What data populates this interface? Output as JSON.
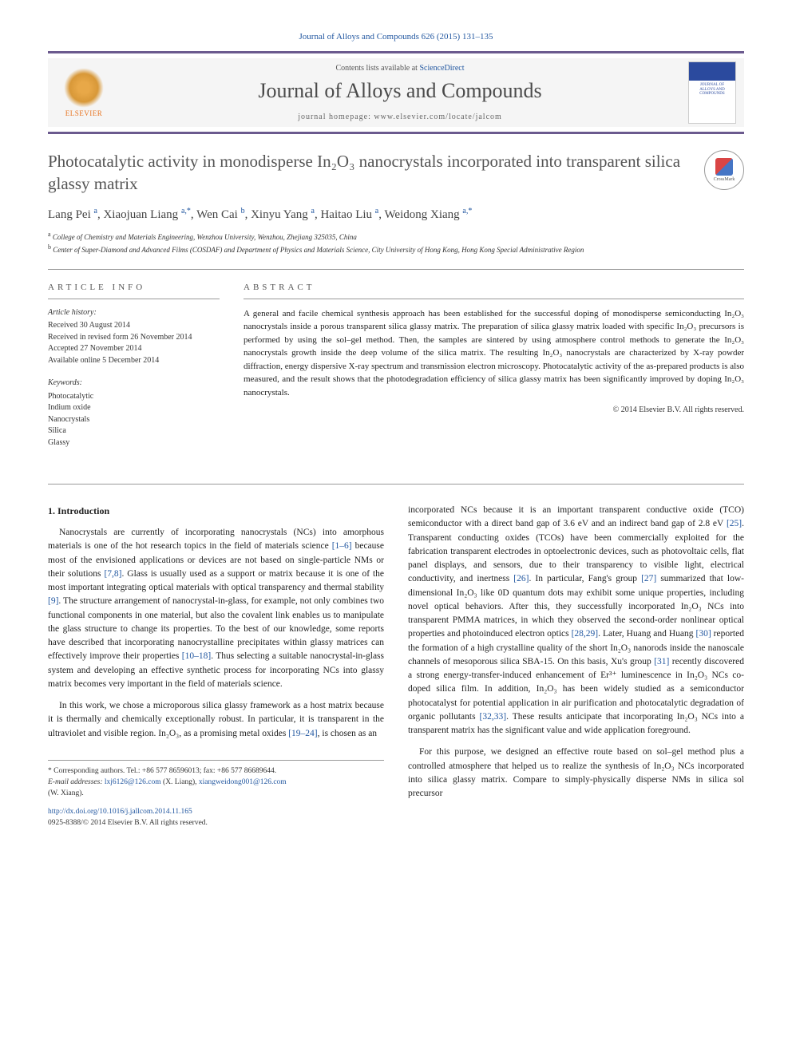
{
  "journal_ref": "Journal of Alloys and Compounds 626 (2015) 131–135",
  "header": {
    "contents_prefix": "Contents lists available at ",
    "contents_link": "ScienceDirect",
    "journal_name": "Journal of Alloys and Compounds",
    "homepage_prefix": "journal homepage: ",
    "homepage_url": "www.elsevier.com/locate/jalcom",
    "publisher": "ELSEVIER",
    "cover_text": "JOURNAL OF ALLOYS AND COMPOUNDS"
  },
  "title": "Photocatalytic activity in monodisperse In₂O₃ nanocrystals incorporated into transparent silica glassy matrix",
  "crossmark_label": "CrossMark",
  "authors_html": "Lang Pei <sup>a</sup>, Xiaojuan Liang <sup>a,*</sup>, Wen Cai <sup>b</sup>, Xinyu Yang <sup>a</sup>, Haitao Liu <sup>a</sup>, Weidong Xiang <sup>a,*</sup>",
  "affiliations": [
    {
      "sup": "a",
      "text": "College of Chemistry and Materials Engineering, Wenzhou University, Wenzhou, Zhejiang 325035, China"
    },
    {
      "sup": "b",
      "text": "Center of Super-Diamond and Advanced Films (COSDAF) and Department of Physics and Materials Science, City University of Hong Kong, Hong Kong Special Administrative Region"
    }
  ],
  "article_info": {
    "heading": "article info",
    "history_label": "Article history:",
    "received": "Received 30 August 2014",
    "revised": "Received in revised form 26 November 2014",
    "accepted": "Accepted 27 November 2014",
    "online": "Available online 5 December 2014",
    "keywords_label": "Keywords:",
    "keywords": [
      "Photocatalytic",
      "Indium oxide",
      "Nanocrystals",
      "Silica",
      "Glassy"
    ]
  },
  "abstract": {
    "heading": "abstract",
    "text": "A general and facile chemical synthesis approach has been established for the successful doping of monodisperse semiconducting In₂O₃ nanocrystals inside a porous transparent silica glassy matrix. The preparation of silica glassy matrix loaded with specific In₂O₃ precursors is performed by using the sol–gel method. Then, the samples are sintered by using atmosphere control methods to generate the In₂O₃ nanocrystals growth inside the deep volume of the silica matrix. The resulting In₂O₃ nanocrystals are characterized by X-ray powder diffraction, energy dispersive X-ray spectrum and transmission electron microscopy. Photocatalytic activity of the as-prepared products is also measured, and the result shows that the photodegradation efficiency of silica glassy matrix has been significantly improved by doping In₂O₃ nanocrystals.",
    "copyright": "© 2014 Elsevier B.V. All rights reserved."
  },
  "body": {
    "section_1_head": "1. Introduction",
    "col1_p1_pre": "Nanocrystals are currently of incorporating nanocrystals (NCs) into amorphous materials is one of the hot research topics in the field of materials science ",
    "col1_p1_ref1": "[1–6]",
    "col1_p1_mid1": " because most of the envisioned applications or devices are not based on single-particle NMs or their solutions ",
    "col1_p1_ref2": "[7,8]",
    "col1_p1_mid2": ". Glass is usually used as a support or matrix because it is one of the most important integrating optical materials with optical transparency and thermal stability ",
    "col1_p1_ref3": "[9]",
    "col1_p1_mid3": ". The structure arrangement of nanocrystal-in-glass, for example, not only combines two functional components in one material, but also the covalent link enables us to manipulate the glass structure to change its properties. To the best of our knowledge, some reports have described that incorporating nanocrystalline precipitates within glassy matrices can effectively improve their properties ",
    "col1_p1_ref4": "[10–18]",
    "col1_p1_post": ". Thus selecting a suitable nanocrystal-in-glass system and developing an effective synthetic process for incorporating NCs into glassy matrix becomes very important in the field of materials science.",
    "col1_p2_pre": "In this work, we chose a microporous silica glassy framework as a host matrix because it is thermally and chemically exceptionally robust. In particular, it is transparent in the ultraviolet and visible region. In₂O₃, as a promising metal oxides ",
    "col1_p2_ref1": "[19–24]",
    "col1_p2_post": ", is chosen as an",
    "col2_p1_pre": "incorporated NCs because it is an important transparent conductive oxide (TCO) semiconductor with a direct band gap of 3.6 eV and an indirect band gap of 2.8 eV ",
    "col2_p1_ref1": "[25]",
    "col2_p1_mid1": ". Transparent conducting oxides (TCOs) have been commercially exploited for the fabrication transparent electrodes in optoelectronic devices, such as photovoltaic cells, flat panel displays, and sensors, due to their transparency to visible light, electrical conductivity, and inertness ",
    "col2_p1_ref2": "[26]",
    "col2_p1_mid2": ". In particular, Fang's group ",
    "col2_p1_ref3": "[27]",
    "col2_p1_mid3": " summarized that low-dimensional In₂O₃ like 0D quantum dots may exhibit some unique properties, including novel optical behaviors. After this, they successfully incorporated In₂O₃ NCs into transparent PMMA matrices, in which they observed the second-order nonlinear optical properties and photoinduced electron optics ",
    "col2_p1_ref4": "[28,29]",
    "col2_p1_mid4": ". Later, Huang and Huang ",
    "col2_p1_ref5": "[30]",
    "col2_p1_mid5": " reported the formation of a high crystalline quality of the short In₂O₃ nanorods inside the nanoscale channels of mesoporous silica SBA-15. On this basis, Xu's group ",
    "col2_p1_ref6": "[31]",
    "col2_p1_mid6": " recently discovered a strong energy-transfer-induced enhancement of Er³⁺ luminescence in In₂O₃ NCs co-doped silica film. In addition, In₂O₃ has been widely studied as a semiconductor photocatalyst for potential application in air purification and photocatalytic degradation of organic pollutants ",
    "col2_p1_ref7": "[32,33]",
    "col2_p1_post": ". These results anticipate that incorporating In₂O₃ NCs into a transparent matrix has the significant value and wide application foreground.",
    "col2_p2": "For this purpose, we designed an effective route based on sol–gel method plus a controlled atmosphere that helped us to realize the synthesis of In₂O₃ NCs incorporated into silica glassy matrix. Compare to simply-physically disperse NMs in silica sol precursor"
  },
  "footer": {
    "corr_label": "* Corresponding authors. Tel.: +86 577 86596013; fax: +86 577 86689644.",
    "email_label": "E-mail addresses: ",
    "email1": "lxj6126@126.com",
    "email1_who": " (X. Liang), ",
    "email2": "xiangweidong001@126.com",
    "email2_who": " (W. Xiang).",
    "doi": "http://dx.doi.org/10.1016/j.jallcom.2014.11.165",
    "issn": "0925-8388/© 2014 Elsevier B.V. All rights reserved."
  },
  "colors": {
    "link": "#2257a0",
    "accent_border": "#6b5a8e",
    "elsevier_orange": "#e8731f"
  }
}
